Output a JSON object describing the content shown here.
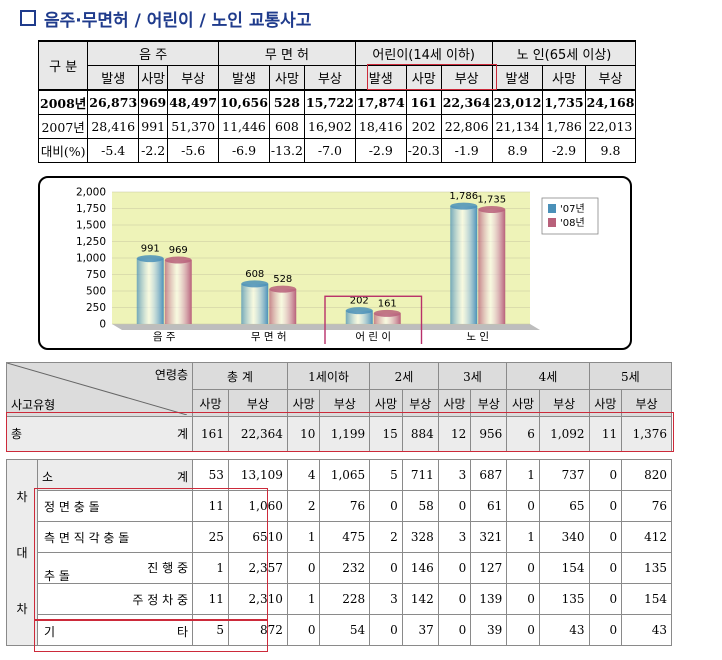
{
  "title": "음주·무면허 / 어린이 / 노인 교통사고",
  "summary_table": {
    "corner": "구 분",
    "groups": [
      "음      주",
      "무 면 허",
      "어린이(14세 이하)",
      "노  인(65세 이상)"
    ],
    "subheaders": [
      "발생",
      "사망",
      "부상",
      "발생",
      "사망",
      "부상",
      "발생",
      "사망",
      "부상",
      "발생",
      "사망",
      "부상"
    ],
    "rows": [
      {
        "label": "2008년",
        "values": [
          "26,873",
          "969",
          "48,497",
          "10,656",
          "528",
          "15,722",
          "17,874",
          "161",
          "22,364",
          "23,012",
          "1,735",
          "24,168"
        ]
      },
      {
        "label": "2007년",
        "values": [
          "28,416",
          "991",
          "51,370",
          "11,446",
          "608",
          "16,902",
          "18,416",
          "202",
          "22,806",
          "21,134",
          "1,786",
          "22,013"
        ]
      },
      {
        "label": "대비(%)",
        "values": [
          "-5.4",
          "-2.2",
          "-5.6",
          "-6.9",
          "-13.2",
          "-7.0",
          "-2.9",
          "-20.3",
          "-1.9",
          "8.9",
          "-2.9",
          "9.8"
        ]
      }
    ]
  },
  "chart_data": {
    "type": "bar",
    "categories": [
      "음 주",
      "무 면 허",
      "어 린 이",
      "노 인"
    ],
    "series": [
      {
        "name": "'07년",
        "values": [
          991,
          608,
          202,
          1786
        ],
        "color": "#4a90b8"
      },
      {
        "name": "'08년",
        "values": [
          969,
          528,
          161,
          1735
        ],
        "color": "#b8607a"
      }
    ],
    "yticks": [
      "2,000",
      "1,750",
      "1,500",
      "1,250",
      "1,000",
      "750",
      "500",
      "250",
      "0"
    ],
    "ylim": [
      0,
      2000
    ],
    "legend": "right",
    "highlight_category": "어 린 이"
  },
  "detail_table": {
    "diag_top": "연령층",
    "diag_bottom": "사고유형",
    "age_groups": [
      "총      계",
      "1세이하",
      "2세",
      "3세",
      "4세",
      "5세"
    ],
    "sub": [
      "사망",
      "부상"
    ],
    "total": {
      "label_a": "총",
      "label_b": "계",
      "values": [
        "161",
        "22,364",
        "10",
        "1,199",
        "15",
        "884",
        "12",
        "956",
        "6",
        "1,092",
        "11",
        "1,376"
      ]
    },
    "side_label": [
      "차",
      "대",
      "차"
    ],
    "rows": [
      {
        "a": "소",
        "b": "계",
        "values": [
          "53",
          "13,109",
          "4",
          "1,065",
          "5",
          "711",
          "3",
          "687",
          "1",
          "737",
          "0",
          "820"
        ]
      },
      {
        "a": "정  면  충  돌",
        "b": "",
        "values": [
          "11",
          "1,060",
          "2",
          "76",
          "0",
          "58",
          "0",
          "61",
          "0",
          "65",
          "0",
          "76"
        ]
      },
      {
        "a": "측 면 직 각 충 돌",
        "b": "",
        "values": [
          "25",
          "6510",
          "1",
          "475",
          "2",
          "328",
          "3",
          "321",
          "1",
          "340",
          "0",
          "412"
        ]
      },
      {
        "a": "추  돌",
        "b": "진  행  중",
        "values": [
          "1",
          "2,357",
          "0",
          "232",
          "0",
          "146",
          "0",
          "127",
          "0",
          "154",
          "0",
          "135"
        ]
      },
      {
        "a": "",
        "b": "주 정 차 중",
        "values": [
          "11",
          "2,310",
          "1",
          "228",
          "3",
          "142",
          "0",
          "139",
          "0",
          "135",
          "0",
          "154"
        ]
      },
      {
        "a": "기",
        "b": "타",
        "values": [
          "5",
          "872",
          "0",
          "54",
          "0",
          "37",
          "0",
          "39",
          "0",
          "43",
          "0",
          "43"
        ]
      }
    ]
  }
}
